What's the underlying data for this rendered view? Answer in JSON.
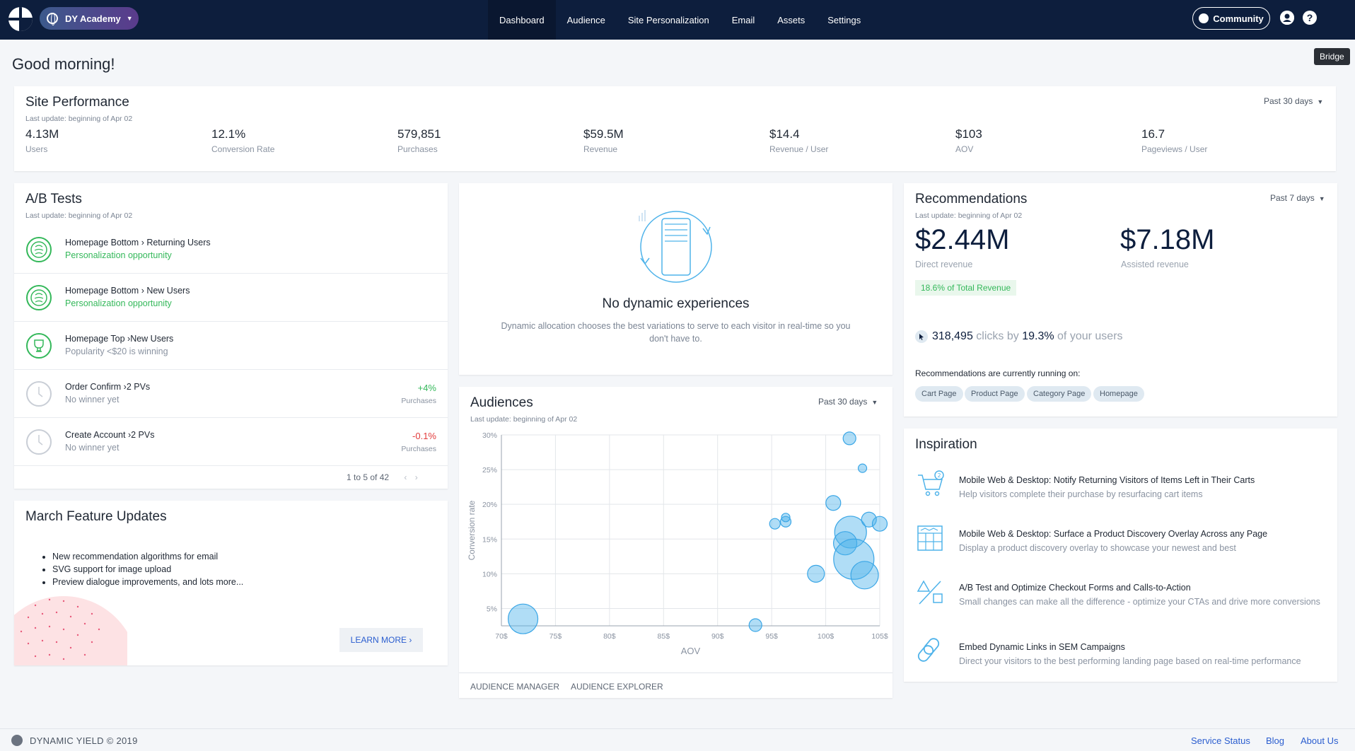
{
  "account": {
    "name": "DY Academy"
  },
  "nav": [
    "Dashboard",
    "Audience",
    "Site Personalization",
    "Email",
    "Assets",
    "Settings"
  ],
  "community_label": "Community",
  "tooltip": "Bridge",
  "greeting": "Good morning!",
  "site_performance": {
    "title": "Site Performance",
    "last_update": "Last update: beginning of Apr 02",
    "range": "Past 30 days",
    "metrics": [
      {
        "value": "4.13M",
        "label": "Users"
      },
      {
        "value": "12.1%",
        "label": "Conversion Rate"
      },
      {
        "value": "579,851",
        "label": "Purchases"
      },
      {
        "value": "$59.5M",
        "label": "Revenue"
      },
      {
        "value": "$14.4",
        "label": "Revenue / User"
      },
      {
        "value": "$103",
        "label": "AOV"
      },
      {
        "value": "16.7",
        "label": "Pageviews / User"
      }
    ]
  },
  "ab_tests": {
    "title": "A/B Tests",
    "last_update": "Last update: beginning of Apr 02",
    "rows": [
      {
        "title": "Homepage Bottom › Returning Users",
        "status": "Personalization opportunity",
        "pct": "",
        "pct_label": ""
      },
      {
        "title": "Homepage Bottom › New Users",
        "status": "Personalization opportunity",
        "pct": "",
        "pct_label": ""
      },
      {
        "title": "Homepage Top ›New Users",
        "status": "Popularity <$20 is winning",
        "pct": "",
        "pct_label": ""
      },
      {
        "title": "Order Confirm ›2 PVs",
        "status": "No winner yet",
        "pct": "+4%",
        "pct_label": "Purchases"
      },
      {
        "title": "Create Account ›2 PVs",
        "status": "No winner yet",
        "pct": "-0.1%",
        "pct_label": "Purchases"
      }
    ],
    "pager": "1 to 5 of 42"
  },
  "features": {
    "title": "March Feature Updates",
    "items": [
      "New recommendation algorithms for email",
      "SVG support for image upload",
      "Preview dialogue improvements, and lots more..."
    ],
    "learn_more": "LEARN MORE ›"
  },
  "dynamic": {
    "title": "No dynamic experiences",
    "desc": "Dynamic allocation chooses the best variations to serve to each visitor in real-time so you don't have to."
  },
  "audiences": {
    "title": "Audiences",
    "last_update": "Last update: beginning of Apr 02",
    "range": "Past 30 days",
    "links": [
      "AUDIENCE MANAGER",
      "AUDIENCE EXPLORER"
    ]
  },
  "chart_data": {
    "type": "scatter",
    "xlabel": "AOV",
    "ylabel": "Conversion rate",
    "xlim": [
      70,
      105
    ],
    "ylim": [
      2.5,
      30
    ],
    "x_ticks": [
      "70$",
      "75$",
      "80$",
      "85$",
      "90$",
      "95$",
      "100$",
      "105$"
    ],
    "y_ticks": [
      "5%",
      "10%",
      "15%",
      "20%",
      "25%",
      "30%"
    ],
    "points": [
      {
        "x": 72,
        "y": 3.5,
        "size": 14
      },
      {
        "x": 93.5,
        "y": 2.6,
        "size": 6
      },
      {
        "x": 95.3,
        "y": 17.2,
        "size": 5
      },
      {
        "x": 96.3,
        "y": 17.5,
        "size": 5
      },
      {
        "x": 96.3,
        "y": 18.1,
        "size": 4
      },
      {
        "x": 99.1,
        "y": 10.0,
        "size": 8
      },
      {
        "x": 100.7,
        "y": 20.2,
        "size": 7
      },
      {
        "x": 102.2,
        "y": 29.5,
        "size": 6
      },
      {
        "x": 103.4,
        "y": 25.2,
        "size": 4
      },
      {
        "x": 102.3,
        "y": 16.0,
        "size": 15
      },
      {
        "x": 101.8,
        "y": 14.4,
        "size": 11
      },
      {
        "x": 102.6,
        "y": 12.1,
        "size": 19
      },
      {
        "x": 103.6,
        "y": 9.8,
        "size": 13
      },
      {
        "x": 104.0,
        "y": 17.8,
        "size": 7
      },
      {
        "x": 105.0,
        "y": 17.2,
        "size": 7
      }
    ]
  },
  "recommendations": {
    "title": "Recommendations",
    "last_update": "Last update: beginning of Apr 02",
    "range": "Past 7 days",
    "direct_value": "$2.44M",
    "direct_label": "Direct revenue",
    "assisted_value": "$7.18M",
    "assisted_label": "Assisted revenue",
    "total_badge": "18.6% of Total Revenue",
    "clicks": "318,495",
    "clicks_by": "clicks by",
    "users_pct": "19.3%",
    "users_suffix": "of your users",
    "running_on": "Recommendations are currently running on:",
    "pages": [
      "Cart Page",
      "Product Page",
      "Category Page",
      "Homepage"
    ]
  },
  "inspiration": {
    "title": "Inspiration",
    "items": [
      {
        "title": "Mobile Web & Desktop: Notify Returning Visitors of Items Left in Their Carts",
        "desc": "Help visitors complete their purchase by resurfacing cart items"
      },
      {
        "title": "Mobile Web & Desktop: Surface a Product Discovery Overlay Across any Page",
        "desc": "Display a product discovery overlay to showcase your newest and best"
      },
      {
        "title": "A/B Test and Optimize Checkout Forms and Calls-to-Action",
        "desc": "Small changes can make all the difference - optimize your CTAs and drive more conversions"
      },
      {
        "title": "Embed Dynamic Links in SEM Campaigns",
        "desc": "Direct your visitors to the best performing landing page based on real-time performance"
      }
    ]
  },
  "footer": {
    "brand": "DYNAMIC YIELD  ©  2019",
    "links": [
      "Service Status",
      "Blog",
      "About Us"
    ]
  },
  "colors": {
    "nav_bg": "#0d1e3d",
    "green": "#34b85a",
    "red": "#e23b3b",
    "bubble": "#4fb3ea",
    "link": "#2a5dcf"
  }
}
